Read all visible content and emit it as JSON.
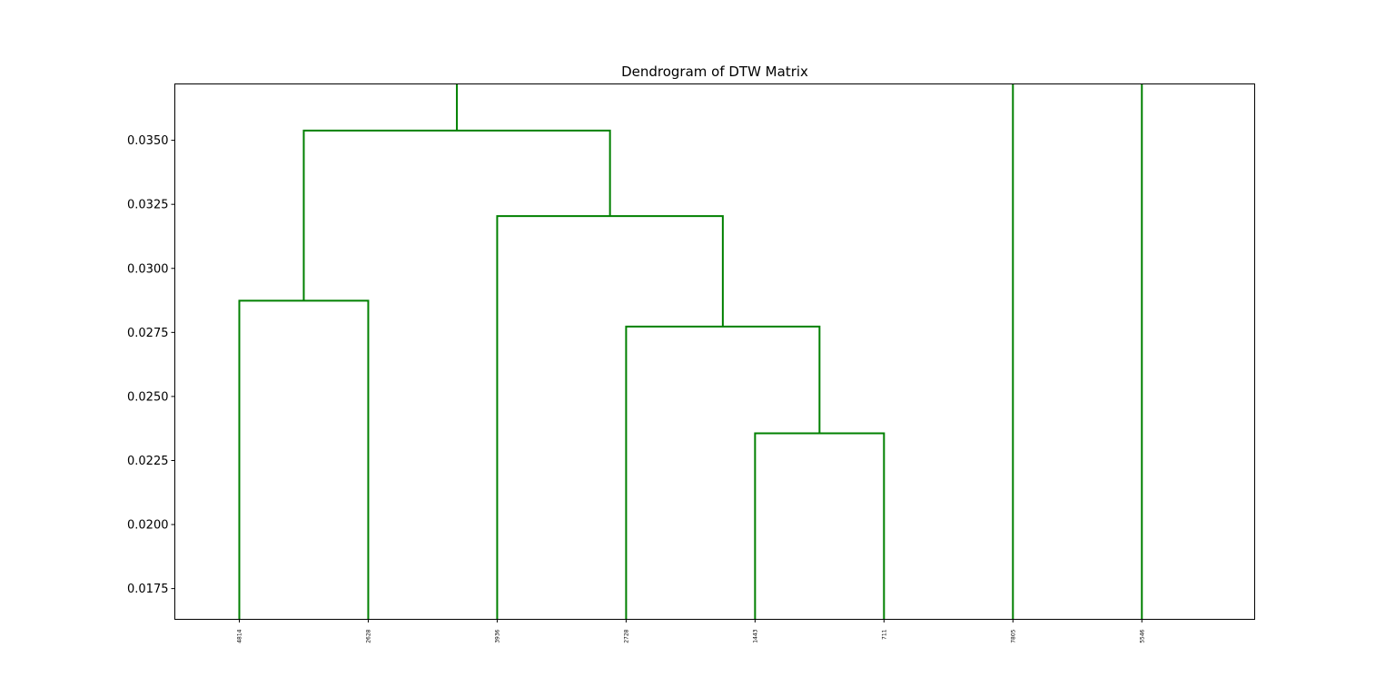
{
  "chart_data": {
    "type": "dendrogram",
    "title": "Dendrogram of DTW Matrix",
    "xlabel": "",
    "ylabel": "",
    "ylim": [
      0.0163,
      0.0372
    ],
    "y_ticks": [
      0.0175,
      0.02,
      0.0225,
      0.025,
      0.0275,
      0.03,
      0.0325,
      0.035
    ],
    "y_tick_labels": [
      "0.0175",
      "0.0200",
      "0.0225",
      "0.0250",
      "0.0275",
      "0.0300",
      "0.0325",
      "0.0350"
    ],
    "leaves": [
      "4814",
      "2628",
      "3936",
      "2728",
      "1443",
      "711",
      "7805",
      "5546"
    ],
    "link_color": "#008000",
    "links": [
      {
        "left_pos": 0.5,
        "right_pos": 1.5,
        "left_height": null,
        "right_height": null,
        "height": 0.02874
      },
      {
        "left_pos": 4.5,
        "right_pos": 5.5,
        "left_height": null,
        "right_height": null,
        "height": 0.02356
      },
      {
        "left_pos": 3.5,
        "right_pos": 5.0,
        "left_height": null,
        "right_height": 0.02356,
        "height": 0.02773
      },
      {
        "left_pos": 2.5,
        "right_pos": 4.25,
        "left_height": null,
        "right_height": 0.02773,
        "height": 0.03204
      },
      {
        "left_pos": 1.0,
        "right_pos": 3.375,
        "left_height": 0.02874,
        "right_height": 0.03204,
        "height": 0.03538
      }
    ],
    "open_stems": [
      {
        "pos": 2.1875,
        "from_height": 0.03538
      },
      {
        "pos": 6.5,
        "from_height": null
      },
      {
        "pos": 7.5,
        "from_height": null
      }
    ],
    "x_range": [
      0,
      8.375
    ],
    "grid": false,
    "legend": "none"
  }
}
